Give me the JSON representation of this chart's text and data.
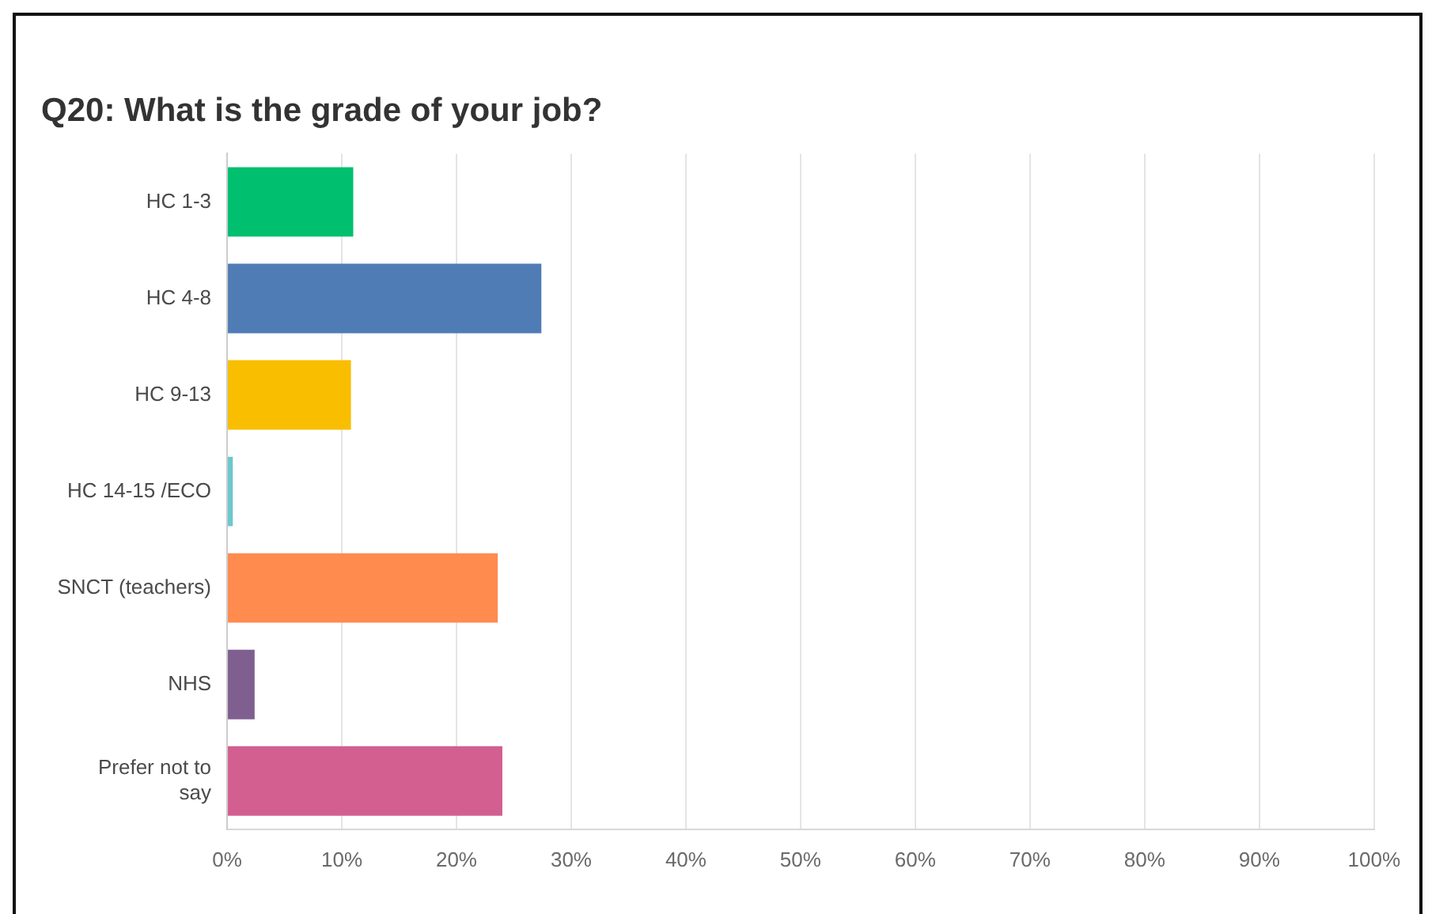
{
  "chart_data": {
    "type": "bar",
    "orientation": "horizontal",
    "title": "Q20: What is the grade of your job?",
    "categories": [
      "HC 1-3",
      "HC 4-8",
      "HC 9-13",
      "HC 14-15 /ECO",
      "SNCT (teachers)",
      "NHS",
      "Prefer not to say"
    ],
    "values": [
      11.0,
      27.4,
      10.8,
      0.5,
      23.6,
      2.4,
      24.0
    ],
    "colors": [
      "#00bf6f",
      "#507cb6",
      "#f9be00",
      "#6bc8cd",
      "#ff8b4f",
      "#7f5f90",
      "#d25f90"
    ],
    "xlim": [
      0,
      100
    ],
    "xticks": [
      {
        "value": 0,
        "label": "0%"
      },
      {
        "value": 10,
        "label": "10%"
      },
      {
        "value": 20,
        "label": "20%"
      },
      {
        "value": 30,
        "label": "30%"
      },
      {
        "value": 40,
        "label": "40%"
      },
      {
        "value": 50,
        "label": "50%"
      },
      {
        "value": 60,
        "label": "60%"
      },
      {
        "value": 70,
        "label": "70%"
      },
      {
        "value": 80,
        "label": "80%"
      },
      {
        "value": 90,
        "label": "90%"
      },
      {
        "value": 100,
        "label": "100%"
      }
    ],
    "grid": "x",
    "legend": false
  }
}
